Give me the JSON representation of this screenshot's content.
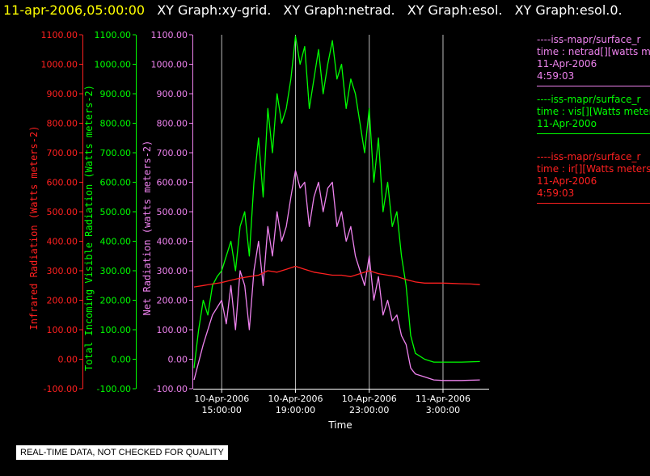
{
  "header": {
    "timestamp": "11-apr-2006,05:00:00",
    "graphs": [
      "XY Graph:xy-grid.",
      "XY Graph:netrad.",
      "XY Graph:esol.",
      "XY Graph:esol.0."
    ]
  },
  "footer": {
    "note": "REAL-TIME DATA, NOT CHECKED FOR QUALITY"
  },
  "legend": [
    {
      "lines": [
        "----iss-mapr/surface_r",
        "time : netrad[][watts m",
        "11-Apr-2006",
        "4:59:03"
      ],
      "color": "#ee82ee"
    },
    {
      "lines": [
        "----iss-mapr/surface_r",
        "time : vis[][Watts meter",
        "11-Apr-200o"
      ],
      "color": "#00ff00"
    },
    {
      "lines": [
        "----iss-mapr/surface_r",
        "time : ir[][Watts meters",
        "11-Apr-2006",
        "4:59:03"
      ],
      "color": "#ff2020"
    }
  ],
  "chart_data": {
    "type": "line",
    "xlabel": "Time",
    "xlim": [
      "2006-04-10T13:30",
      "2006-04-11T05:30"
    ],
    "x_ticks": [
      {
        "time": "2006-04-10T15:00",
        "label1": "10-Apr-2006",
        "label2": "15:00:00"
      },
      {
        "time": "2006-04-10T19:00",
        "label1": "10-Apr-2006",
        "label2": "19:00:00"
      },
      {
        "time": "2006-04-10T23:00",
        "label1": "10-Apr-2006",
        "label2": "23:00:00"
      },
      {
        "time": "2006-04-11T03:00",
        "label1": "11-Apr-2006",
        "label2": "3:00:00"
      }
    ],
    "grid": true,
    "ylim": [
      -100,
      1100
    ],
    "y_ticks": [
      "1100.00",
      "1000.00",
      "900.00",
      "800.00",
      "700.00",
      "600.00",
      "500.00",
      "400.00",
      "300.00",
      "200.00",
      "100.00",
      "0.00",
      "-100.00"
    ],
    "axes": [
      {
        "label": "Infrared Radiation (Watts meters-2)",
        "color": "#ff2020"
      },
      {
        "label": "Total Incoming Visible Radiation (Watts meters-2)",
        "color": "#00ff00"
      },
      {
        "label": "Net Radiation (watts meters-2)",
        "color": "#ee82ee"
      }
    ],
    "series": [
      {
        "key": "ir",
        "color": "#ff2020",
        "points": [
          [
            "2006-04-10T13:30",
            245
          ],
          [
            "2006-04-10T14:00",
            250
          ],
          [
            "2006-04-10T14:30",
            255
          ],
          [
            "2006-04-10T15:00",
            260
          ],
          [
            "2006-04-10T15:30",
            268
          ],
          [
            "2006-04-10T16:00",
            275
          ],
          [
            "2006-04-10T16:30",
            280
          ],
          [
            "2006-04-10T17:00",
            285
          ],
          [
            "2006-04-10T17:30",
            300
          ],
          [
            "2006-04-10T18:00",
            295
          ],
          [
            "2006-04-10T18:30",
            305
          ],
          [
            "2006-04-10T19:00",
            315
          ],
          [
            "2006-04-10T19:30",
            305
          ],
          [
            "2006-04-10T20:00",
            295
          ],
          [
            "2006-04-10T20:30",
            290
          ],
          [
            "2006-04-10T21:00",
            285
          ],
          [
            "2006-04-10T21:30",
            285
          ],
          [
            "2006-04-10T22:00",
            280
          ],
          [
            "2006-04-10T22:30",
            290
          ],
          [
            "2006-04-10T23:00",
            300
          ],
          [
            "2006-04-10T23:30",
            290
          ],
          [
            "2006-04-11T00:00",
            285
          ],
          [
            "2006-04-11T00:30",
            280
          ],
          [
            "2006-04-11T01:00",
            270
          ],
          [
            "2006-04-11T01:30",
            262
          ],
          [
            "2006-04-11T02:00",
            258
          ],
          [
            "2006-04-11T02:30",
            258
          ],
          [
            "2006-04-11T03:00",
            258
          ],
          [
            "2006-04-11T03:30",
            257
          ],
          [
            "2006-04-11T04:00",
            256
          ],
          [
            "2006-04-11T04:30",
            255
          ],
          [
            "2006-04-11T05:00",
            253
          ]
        ]
      },
      {
        "key": "vis",
        "color": "#00ff00",
        "points": [
          [
            "2006-04-10T13:30",
            -30
          ],
          [
            "2006-04-10T13:45",
            100
          ],
          [
            "2006-04-10T14:00",
            200
          ],
          [
            "2006-04-10T14:15",
            150
          ],
          [
            "2006-04-10T14:30",
            250
          ],
          [
            "2006-04-10T14:45",
            280
          ],
          [
            "2006-04-10T15:00",
            300
          ],
          [
            "2006-04-10T15:15",
            350
          ],
          [
            "2006-04-10T15:30",
            400
          ],
          [
            "2006-04-10T15:45",
            300
          ],
          [
            "2006-04-10T16:00",
            450
          ],
          [
            "2006-04-10T16:15",
            500
          ],
          [
            "2006-04-10T16:30",
            350
          ],
          [
            "2006-04-10T16:45",
            600
          ],
          [
            "2006-04-10T17:00",
            750
          ],
          [
            "2006-04-10T17:15",
            550
          ],
          [
            "2006-04-10T17:30",
            850
          ],
          [
            "2006-04-10T17:45",
            700
          ],
          [
            "2006-04-10T18:00",
            900
          ],
          [
            "2006-04-10T18:15",
            800
          ],
          [
            "2006-04-10T18:30",
            850
          ],
          [
            "2006-04-10T18:45",
            950
          ],
          [
            "2006-04-10T19:00",
            1095
          ],
          [
            "2006-04-10T19:15",
            1000
          ],
          [
            "2006-04-10T19:30",
            1060
          ],
          [
            "2006-04-10T19:45",
            850
          ],
          [
            "2006-04-10T20:00",
            950
          ],
          [
            "2006-04-10T20:15",
            1050
          ],
          [
            "2006-04-10T20:30",
            900
          ],
          [
            "2006-04-10T20:45",
            1000
          ],
          [
            "2006-04-10T21:00",
            1080
          ],
          [
            "2006-04-10T21:15",
            950
          ],
          [
            "2006-04-10T21:30",
            1000
          ],
          [
            "2006-04-10T21:45",
            850
          ],
          [
            "2006-04-10T22:00",
            950
          ],
          [
            "2006-04-10T22:15",
            900
          ],
          [
            "2006-04-10T22:30",
            800
          ],
          [
            "2006-04-10T22:45",
            700
          ],
          [
            "2006-04-10T23:00",
            850
          ],
          [
            "2006-04-10T23:15",
            600
          ],
          [
            "2006-04-10T23:30",
            750
          ],
          [
            "2006-04-10T23:45",
            500
          ],
          [
            "2006-04-11T00:00",
            600
          ],
          [
            "2006-04-11T00:15",
            450
          ],
          [
            "2006-04-11T00:30",
            500
          ],
          [
            "2006-04-11T00:45",
            350
          ],
          [
            "2006-04-11T01:00",
            250
          ],
          [
            "2006-04-11T01:15",
            80
          ],
          [
            "2006-04-11T01:30",
            20
          ],
          [
            "2006-04-11T02:00",
            0
          ],
          [
            "2006-04-11T02:30",
            -10
          ],
          [
            "2006-04-11T03:00",
            -10
          ],
          [
            "2006-04-11T04:00",
            -10
          ],
          [
            "2006-04-11T05:00",
            -8
          ]
        ]
      },
      {
        "key": "netrad",
        "color": "#ee82ee",
        "points": [
          [
            "2006-04-10T13:30",
            -70
          ],
          [
            "2006-04-10T14:00",
            50
          ],
          [
            "2006-04-10T14:30",
            150
          ],
          [
            "2006-04-10T15:00",
            200
          ],
          [
            "2006-04-10T15:15",
            120
          ],
          [
            "2006-04-10T15:30",
            250
          ],
          [
            "2006-04-10T15:45",
            100
          ],
          [
            "2006-04-10T16:00",
            300
          ],
          [
            "2006-04-10T16:15",
            250
          ],
          [
            "2006-04-10T16:30",
            100
          ],
          [
            "2006-04-10T16:45",
            300
          ],
          [
            "2006-04-10T17:00",
            400
          ],
          [
            "2006-04-10T17:15",
            250
          ],
          [
            "2006-04-10T17:30",
            450
          ],
          [
            "2006-04-10T17:45",
            350
          ],
          [
            "2006-04-10T18:00",
            500
          ],
          [
            "2006-04-10T18:15",
            400
          ],
          [
            "2006-04-10T18:30",
            450
          ],
          [
            "2006-04-10T18:45",
            550
          ],
          [
            "2006-04-10T19:00",
            640
          ],
          [
            "2006-04-10T19:15",
            580
          ],
          [
            "2006-04-10T19:30",
            600
          ],
          [
            "2006-04-10T19:45",
            450
          ],
          [
            "2006-04-10T20:00",
            550
          ],
          [
            "2006-04-10T20:15",
            600
          ],
          [
            "2006-04-10T20:30",
            500
          ],
          [
            "2006-04-10T20:45",
            580
          ],
          [
            "2006-04-10T21:00",
            600
          ],
          [
            "2006-04-10T21:15",
            450
          ],
          [
            "2006-04-10T21:30",
            500
          ],
          [
            "2006-04-10T21:45",
            400
          ],
          [
            "2006-04-10T22:00",
            450
          ],
          [
            "2006-04-10T22:15",
            350
          ],
          [
            "2006-04-10T22:30",
            300
          ],
          [
            "2006-04-10T22:45",
            250
          ],
          [
            "2006-04-10T23:00",
            350
          ],
          [
            "2006-04-10T23:15",
            200
          ],
          [
            "2006-04-10T23:30",
            280
          ],
          [
            "2006-04-10T23:45",
            150
          ],
          [
            "2006-04-11T00:00",
            200
          ],
          [
            "2006-04-11T00:15",
            130
          ],
          [
            "2006-04-11T00:30",
            150
          ],
          [
            "2006-04-11T00:45",
            80
          ],
          [
            "2006-04-11T01:00",
            50
          ],
          [
            "2006-04-11T01:15",
            -30
          ],
          [
            "2006-04-11T01:30",
            -50
          ],
          [
            "2006-04-11T02:00",
            -60
          ],
          [
            "2006-04-11T02:30",
            -70
          ],
          [
            "2006-04-11T03:00",
            -72
          ],
          [
            "2006-04-11T04:00",
            -72
          ],
          [
            "2006-04-11T05:00",
            -70
          ]
        ]
      }
    ]
  }
}
